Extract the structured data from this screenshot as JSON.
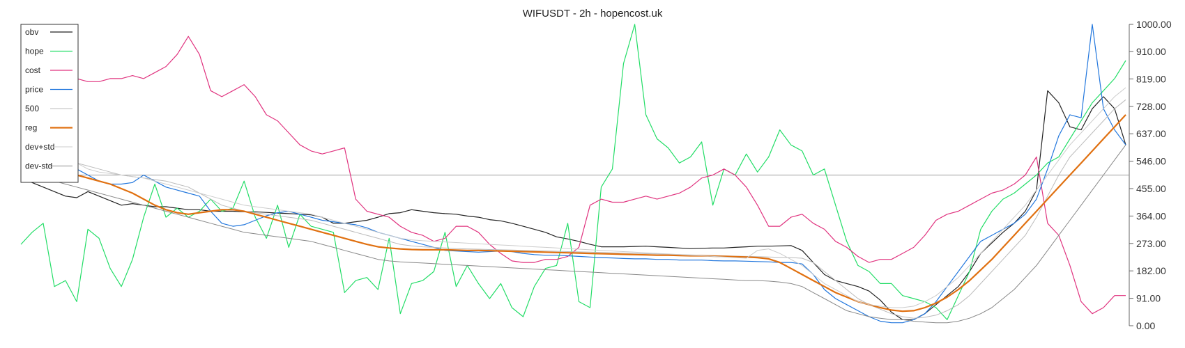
{
  "chart_data": {
    "type": "line",
    "title": "WIFUSDT - 2h - hopencost.uk",
    "xlabel": "",
    "ylabel": "",
    "ylim": [
      0,
      1000
    ],
    "yticks": [
      "0.00",
      "91.00",
      "182.00",
      "273.00",
      "364.00",
      "455.00",
      "546.00",
      "637.00",
      "728.00",
      "819.00",
      "910.00",
      "1000.00"
    ],
    "grid": false,
    "legend_position": "top-left",
    "hline": 500,
    "x_points": 100,
    "series": [
      {
        "name": "obv",
        "color": "#222222",
        "width": 1.2,
        "values": [
          490,
          475,
          460,
          445,
          430,
          425,
          445,
          430,
          415,
          400,
          405,
          400,
          395,
          395,
          390,
          385,
          385,
          380,
          380,
          380,
          378,
          378,
          376,
          374,
          372,
          370,
          368,
          360,
          340,
          340,
          345,
          350,
          360,
          372,
          375,
          385,
          380,
          375,
          372,
          370,
          364,
          360,
          352,
          348,
          340,
          330,
          320,
          310,
          295,
          288,
          280,
          270,
          262,
          262,
          262,
          263,
          264,
          262,
          260,
          258,
          256,
          257,
          258,
          258,
          260,
          262,
          264,
          264,
          265,
          266,
          250,
          210,
          170,
          150,
          140,
          130,
          115,
          85,
          45,
          20,
          20,
          40,
          70,
          100,
          130,
          180,
          240,
          275,
          310,
          340,
          380,
          450,
          780,
          740,
          660,
          650,
          720,
          760,
          720,
          600
        ]
      },
      {
        "name": "hope",
        "color": "#22dd66",
        "width": 1.2,
        "values": [
          270,
          310,
          340,
          130,
          150,
          80,
          320,
          290,
          190,
          130,
          220,
          360,
          470,
          360,
          390,
          360,
          380,
          420,
          380,
          390,
          480,
          360,
          290,
          400,
          260,
          370,
          330,
          320,
          310,
          110,
          150,
          160,
          120,
          290,
          40,
          140,
          150,
          180,
          310,
          130,
          200,
          140,
          90,
          140,
          60,
          30,
          130,
          190,
          200,
          340,
          80,
          60,
          460,
          520,
          870,
          1000,
          700,
          620,
          590,
          540,
          560,
          610,
          400,
          520,
          500,
          570,
          510,
          560,
          650,
          600,
          580,
          500,
          520,
          400,
          280,
          200,
          180,
          140,
          140,
          100,
          90,
          80,
          60,
          20,
          100,
          180,
          320,
          380,
          420,
          440,
          470,
          500,
          540,
          560,
          620,
          680,
          740,
          780,
          820,
          880
        ]
      },
      {
        "name": "cost",
        "color": "#e0337f",
        "width": 1.2,
        "values": [
          910,
          900,
          880,
          860,
          850,
          820,
          810,
          810,
          820,
          820,
          830,
          820,
          840,
          860,
          900,
          960,
          900,
          780,
          760,
          780,
          800,
          760,
          700,
          680,
          640,
          600,
          580,
          570,
          580,
          590,
          420,
          380,
          370,
          360,
          330,
          310,
          300,
          280,
          290,
          330,
          330,
          310,
          270,
          240,
          215,
          210,
          210,
          220,
          220,
          230,
          260,
          400,
          420,
          410,
          410,
          420,
          430,
          420,
          430,
          440,
          460,
          490,
          500,
          520,
          500,
          460,
          400,
          330,
          330,
          360,
          370,
          340,
          320,
          280,
          260,
          230,
          210,
          220,
          220,
          240,
          260,
          300,
          350,
          370,
          380,
          400,
          420,
          440,
          450,
          470,
          500,
          560,
          340,
          300,
          200,
          80,
          40,
          60,
          100,
          100
        ]
      },
      {
        "name": "price",
        "color": "#2277dd",
        "width": 1.2,
        "values": [
          530,
          560,
          580,
          560,
          540,
          520,
          500,
          480,
          470,
          470,
          475,
          500,
          480,
          460,
          450,
          440,
          430,
          380,
          340,
          330,
          335,
          350,
          365,
          375,
          380,
          370,
          360,
          350,
          345,
          340,
          335,
          325,
          310,
          300,
          290,
          280,
          270,
          260,
          250,
          248,
          246,
          244,
          246,
          248,
          246,
          240,
          236,
          234,
          234,
          232,
          230,
          228,
          226,
          225,
          223,
          222,
          222,
          220,
          220,
          218,
          218,
          218,
          216,
          215,
          215,
          214,
          213,
          212,
          210,
          210,
          205,
          170,
          120,
          90,
          70,
          50,
          30,
          15,
          10,
          10,
          20,
          40,
          80,
          130,
          180,
          230,
          280,
          300,
          320,
          340,
          370,
          420,
          520,
          630,
          700,
          690,
          1000,
          720,
          650,
          600
        ]
      },
      {
        "name": "500",
        "color": "#bbbbbb",
        "width": 1.0,
        "values": [
          600,
          580,
          570,
          560,
          550,
          540,
          530,
          520,
          510,
          500,
          495,
          490,
          485,
          480,
          470,
          460,
          440,
          420,
          400,
          390,
          380,
          375,
          370,
          365,
          360,
          355,
          350,
          340,
          330,
          320,
          310,
          300,
          290,
          280,
          270,
          265,
          262,
          260,
          258,
          256,
          255,
          254,
          253,
          252,
          251,
          250,
          249,
          248,
          247,
          246,
          245,
          244,
          243,
          242,
          241,
          240,
          239,
          238,
          237,
          236,
          235,
          234,
          233,
          232,
          231,
          230,
          229,
          228,
          227,
          226,
          224,
          210,
          180,
          150,
          120,
          90,
          70,
          55,
          40,
          30,
          25,
          28,
          35,
          50,
          70,
          100,
          140,
          180,
          220,
          260,
          300,
          360,
          430,
          500,
          560,
          600,
          640,
          680,
          720,
          750
        ]
      },
      {
        "name": "reg",
        "color": "#e07010",
        "width": 2.2,
        "values": [
          580,
          570,
          550,
          530,
          510,
          500,
          490,
          480,
          470,
          455,
          440,
          420,
          400,
          385,
          375,
          370,
          375,
          380,
          385,
          385,
          380,
          370,
          360,
          350,
          340,
          330,
          320,
          310,
          300,
          290,
          280,
          270,
          262,
          258,
          255,
          253,
          252,
          252,
          252,
          251,
          250,
          250,
          249,
          248,
          247,
          246,
          245,
          244,
          243,
          242,
          241,
          240,
          239,
          238,
          237,
          236,
          235,
          234,
          234,
          233,
          232,
          232,
          231,
          230,
          229,
          228,
          226,
          222,
          210,
          190,
          170,
          150,
          130,
          110,
          95,
          80,
          70,
          60,
          52,
          48,
          50,
          60,
          75,
          95,
          120,
          150,
          185,
          220,
          260,
          300,
          340,
          380,
          420,
          460,
          500,
          540,
          580,
          620,
          660,
          700
        ]
      },
      {
        "name": "dev+std",
        "color": "#cccccc",
        "width": 1.0,
        "values": [
          630,
          620,
          600,
          580,
          560,
          540,
          520,
          510,
          505,
          500,
          495,
          490,
          480,
          470,
          460,
          450,
          440,
          430,
          420,
          410,
          400,
          395,
          390,
          385,
          380,
          375,
          370,
          360,
          350,
          340,
          330,
          320,
          310,
          300,
          290,
          285,
          282,
          280,
          278,
          276,
          274,
          272,
          270,
          268,
          266,
          264,
          262,
          260,
          258,
          256,
          254,
          252,
          250,
          248,
          246,
          244,
          242,
          240,
          238,
          236,
          234,
          232,
          230,
          228,
          226,
          224,
          250,
          255,
          240,
          220,
          200,
          170,
          140,
          120,
          100,
          80,
          70,
          65,
          60,
          60,
          65,
          80,
          100,
          130,
          160,
          200,
          240,
          280,
          320,
          360,
          400,
          450,
          500,
          550,
          600,
          640,
          680,
          720,
          760,
          790
        ]
      },
      {
        "name": "dev-std",
        "color": "#888888",
        "width": 1.0,
        "values": [
          510,
          500,
          490,
          480,
          470,
          460,
          450,
          440,
          430,
          420,
          410,
          400,
          390,
          380,
          370,
          360,
          350,
          340,
          330,
          320,
          310,
          305,
          300,
          295,
          290,
          285,
          280,
          270,
          260,
          250,
          240,
          230,
          220,
          215,
          212,
          210,
          208,
          206,
          204,
          202,
          200,
          198,
          196,
          194,
          192,
          190,
          188,
          186,
          184,
          182,
          180,
          178,
          176,
          174,
          172,
          170,
          168,
          166,
          164,
          162,
          160,
          158,
          156,
          154,
          152,
          150,
          150,
          148,
          145,
          140,
          130,
          110,
          90,
          70,
          50,
          40,
          30,
          25,
          20,
          20,
          15,
          12,
          10,
          10,
          15,
          25,
          40,
          60,
          90,
          120,
          160,
          200,
          250,
          300,
          350,
          400,
          450,
          500,
          550,
          600
        ]
      }
    ]
  }
}
